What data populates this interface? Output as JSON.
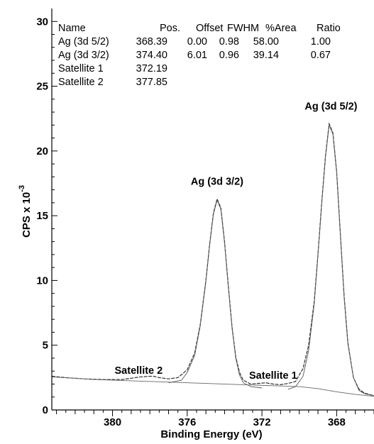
{
  "chart_data": {
    "type": "line",
    "xlabel": "Binding Energy (eV)",
    "ylabel": "CPS x 10",
    "ylabel_exponent": "-3",
    "x_reversed": true,
    "xlim": [
      383.25,
      366.0
    ],
    "ylim": [
      0,
      31
    ],
    "x_ticks": [
      380,
      376,
      372,
      368
    ],
    "y_ticks": [
      0,
      5,
      10,
      15,
      20,
      25,
      30
    ],
    "grid": false,
    "table": {
      "headers": [
        "Name",
        "Pos.",
        "Offset",
        "FWHM",
        "%Area",
        "Ratio"
      ],
      "rows": [
        [
          "Ag (3d 5/2)",
          "368.39",
          "0.00",
          "0.98",
          "58.00",
          "1.00"
        ],
        [
          "Ag (3d 3/2)",
          "374.40",
          "6.01",
          "0.96",
          "39.14",
          "0.67"
        ],
        [
          "Satellite 1",
          "372.19",
          "",
          "",
          "",
          ""
        ],
        [
          "Satellite 2",
          "377.85",
          "",
          "",
          "",
          ""
        ]
      ]
    },
    "annotations": [
      {
        "text": "Ag (3d 5/2)",
        "x": 368.3,
        "y": 23.2
      },
      {
        "text": "Ag (3d 3/2)",
        "x": 374.4,
        "y": 17.4
      },
      {
        "text": "Satellite 1",
        "x": 371.4,
        "y": 2.4
      },
      {
        "text": "Satellite 2",
        "x": 378.6,
        "y": 2.8
      }
    ],
    "series": [
      {
        "role": "envelope",
        "color": "#333333",
        "x": [
          383.25,
          382.5,
          381.5,
          380.5,
          379.5,
          379.0,
          378.5,
          378.0,
          377.8,
          377.5,
          377.0,
          376.5,
          376.0,
          375.6,
          375.3,
          375.0,
          374.8,
          374.6,
          374.4,
          374.2,
          374.0,
          373.8,
          373.6,
          373.4,
          373.2,
          373.0,
          372.6,
          372.2,
          371.8,
          371.4,
          371.0,
          370.6,
          370.2,
          369.8,
          369.5,
          369.2,
          369.0,
          368.8,
          368.6,
          368.4,
          368.2,
          368.0,
          367.8,
          367.6,
          367.4,
          367.1,
          366.8,
          366.5,
          366.0
        ],
        "y": [
          2.6,
          2.5,
          2.4,
          2.35,
          2.35,
          2.45,
          2.55,
          2.6,
          2.6,
          2.5,
          2.4,
          2.5,
          3.1,
          4.4,
          6.6,
          10.0,
          12.8,
          15.2,
          16.3,
          15.6,
          13.0,
          9.6,
          6.4,
          4.1,
          2.9,
          2.3,
          2.0,
          2.05,
          2.1,
          2.0,
          1.95,
          2.05,
          2.2,
          3.2,
          5.0,
          8.4,
          12.0,
          16.0,
          19.6,
          22.1,
          21.4,
          18.4,
          13.6,
          8.8,
          5.2,
          2.5,
          1.6,
          1.3,
          1.1
        ]
      },
      {
        "role": "peak",
        "name": "Ag (3d 5/2)",
        "color": "#555555",
        "x": [
          370.6,
          370.2,
          369.8,
          369.5,
          369.2,
          369.0,
          368.8,
          368.6,
          368.4,
          368.2,
          368.0,
          367.8,
          367.6,
          367.4,
          367.1,
          366.8,
          366.5,
          366.0
        ],
        "y": [
          1.6,
          1.8,
          2.6,
          4.6,
          8.2,
          11.9,
          15.9,
          19.5,
          22.0,
          21.3,
          18.3,
          13.5,
          8.7,
          5.1,
          2.5,
          1.5,
          1.25,
          1.1
        ]
      },
      {
        "role": "peak",
        "name": "Ag (3d 3/2)",
        "color": "#555555",
        "x": [
          377.0,
          376.3,
          376.0,
          375.6,
          375.3,
          375.0,
          374.8,
          374.6,
          374.4,
          374.2,
          374.0,
          373.8,
          373.6,
          373.4,
          373.2,
          373.0,
          372.6,
          372.0
        ],
        "y": [
          2.1,
          2.3,
          2.9,
          4.2,
          6.5,
          9.9,
          12.7,
          15.1,
          16.2,
          15.5,
          12.9,
          9.5,
          6.3,
          4.0,
          2.7,
          2.1,
          1.8,
          1.7
        ]
      },
      {
        "role": "background",
        "color": "#666666",
        "x": [
          383.25,
          381.0,
          379.0,
          377.0,
          375.0,
          373.0,
          371.0,
          370.0,
          369.0,
          368.0,
          367.0,
          366.0
        ],
        "y": [
          2.55,
          2.35,
          2.25,
          2.15,
          2.05,
          1.95,
          1.85,
          1.8,
          1.65,
          1.4,
          1.2,
          1.05
        ]
      }
    ]
  }
}
